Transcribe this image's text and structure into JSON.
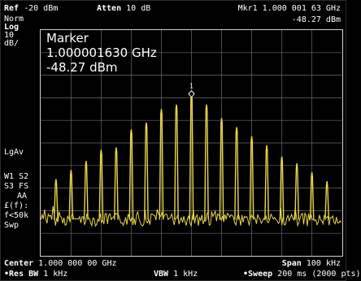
{
  "header": {
    "ref_label": "Ref",
    "ref_value": "-20 dBm",
    "atten_label": "Atten",
    "atten_value": "10 dB",
    "marker_readout_freq": "Mkr1  1.000 001 63 GHz",
    "marker_readout_amp": "-48.27 dBm"
  },
  "side_labels": {
    "norm": "Norm",
    "log": "Log",
    "scale": "10",
    "unit": "dB/",
    "lgav": "LgAv",
    "w1s2": "W1  S2",
    "s3fs": "S3  FS",
    "aa": "AA",
    "ef": "£(f):",
    "f50k": "f<50k",
    "swp": "Swp"
  },
  "marker_panel": {
    "title": "Marker",
    "frequency": "1.000001630 GHz",
    "amplitude": "-48.27 dBm",
    "marker_number": "1"
  },
  "footer": {
    "center_label": "Center",
    "center_value": "1.000 000 00 GHz",
    "span_label": "Span",
    "span_value": "100 kHz",
    "res_bw_label": "Res BW",
    "res_bw_value": "1 kHz",
    "vbw_label": "VBW",
    "vbw_value": "1 kHz",
    "sweep_label": "Sweep",
    "sweep_value": "200 ms (2000 pts)"
  },
  "colors": {
    "trace": "#e8d84a",
    "grid": "#6a6a6a",
    "border": "#cfcfcf",
    "text": "#ffffff"
  },
  "chart_data": {
    "type": "line",
    "center_ghz": 1.0,
    "span_khz": 100,
    "ref_dbm": -20,
    "scale_db_per_div": 10,
    "divisions": 10,
    "peak_offsets_khz": [
      -45,
      -40,
      -35,
      -30,
      -25,
      -20,
      -15,
      -10,
      -5,
      0,
      5,
      10,
      15,
      20,
      25,
      30,
      35,
      40,
      45
    ],
    "peak_levels_dbm": [
      -86.0,
      -82.0,
      -78.0,
      -73.0,
      -72.0,
      -64.0,
      -61.0,
      -55.0,
      -53.0,
      -48.3,
      -53.0,
      -59.0,
      -63.0,
      -67.0,
      -71.0,
      -76.0,
      -79.0,
      -83.0,
      -87.0
    ],
    "noise_floor_dbm": -104
  }
}
